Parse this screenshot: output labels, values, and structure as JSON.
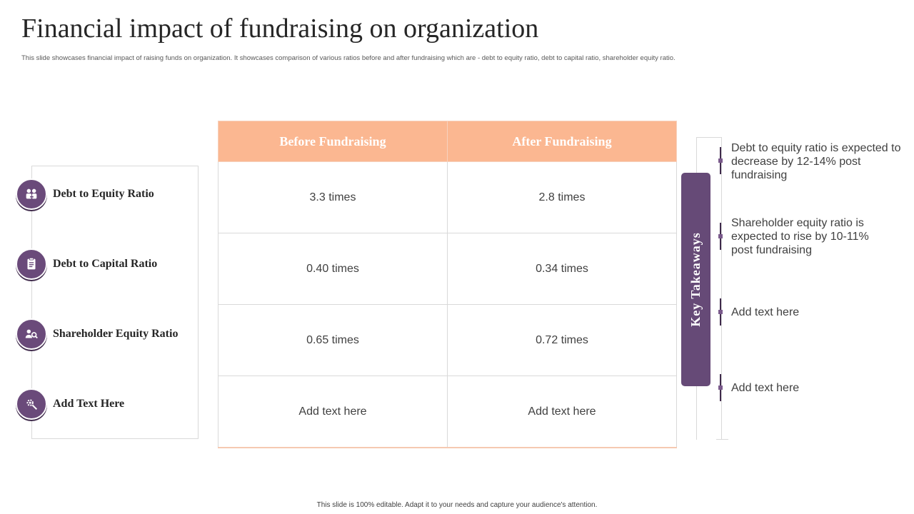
{
  "title": "Financial impact of fundraising on organization",
  "subtitle": "This slide showcases financial impact of raising funds on organization. It showcases comparison of various ratios before and after fundraising which are - debt to equity ratio, debt to capital ratio, shareholder equity ratio.",
  "rows": [
    {
      "label": "Debt to Equity Ratio",
      "icon": "team-ratio-icon",
      "before": "3.3 times",
      "after": "2.8 times"
    },
    {
      "label": "Debt to Capital Ratio",
      "icon": "clipboard-icon",
      "before": "0.40 times",
      "after": "0.34 times"
    },
    {
      "label": "Shareholder Equity Ratio",
      "icon": "people-search-icon",
      "before": "0.65 times",
      "after": "0.72 times"
    },
    {
      "label": "Add Text Here",
      "icon": "gear-magnifier-icon",
      "before": "Add text here",
      "after": "Add text here"
    }
  ],
  "table": {
    "header_before": "Before Fundraising",
    "header_after": "After Fundraising"
  },
  "key_takeaways": {
    "heading": "Key Takeaways",
    "items": [
      "Debt to equity ratio is expected to decrease by 12-14% post fundraising",
      "Shareholder equity ratio is expected to rise by 10-11% post fundraising",
      "Add text here",
      "Add text here"
    ]
  },
  "footer": "This slide is 100% editable. Adapt it to your needs and capture your audience's attention.",
  "colors": {
    "accent_purple": "#664a77",
    "header_peach": "#fbb791"
  }
}
